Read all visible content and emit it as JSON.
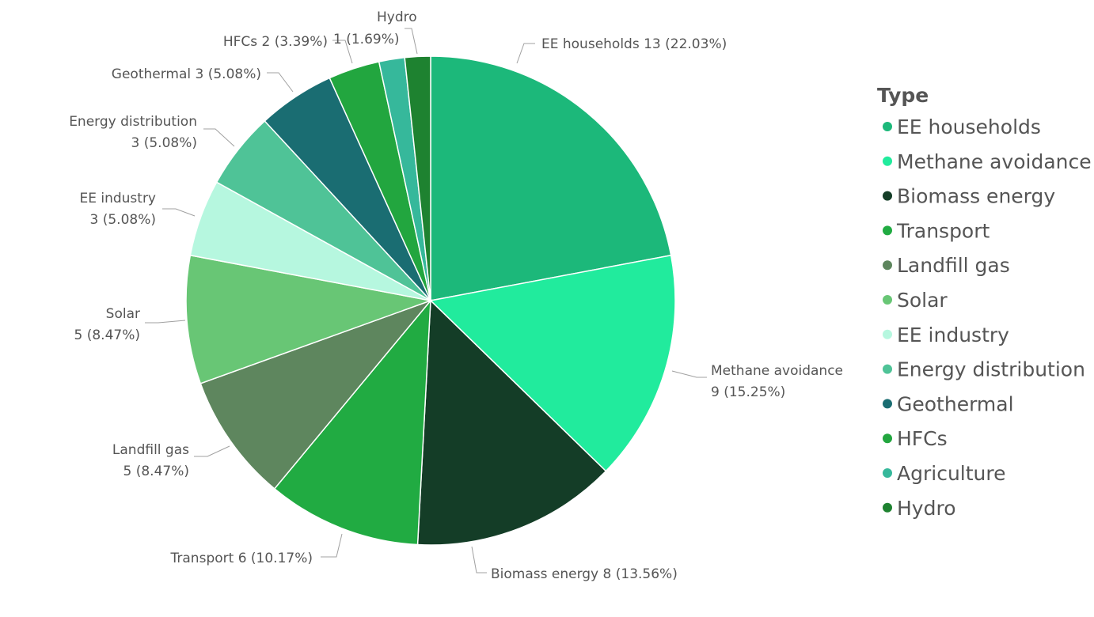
{
  "chart_data": {
    "type": "pie",
    "legend": {
      "title": "Type",
      "position": "right"
    },
    "slices": [
      {
        "label": "EE households",
        "value": 13,
        "percent": "22.03%",
        "color": "#1cb87a"
      },
      {
        "label": "Methane avoidance",
        "value": 9,
        "percent": "15.25%",
        "color": "#21eb9d"
      },
      {
        "label": "Biomass energy",
        "value": 8,
        "percent": "13.56%",
        "color": "#143d27"
      },
      {
        "label": "Transport",
        "value": 6,
        "percent": "10.17%",
        "color": "#21ab42"
      },
      {
        "label": "Landfill gas",
        "value": 5,
        "percent": "8.47%",
        "color": "#5e865e"
      },
      {
        "label": "Solar",
        "value": 5,
        "percent": "8.47%",
        "color": "#68c675"
      },
      {
        "label": "EE industry",
        "value": 3,
        "percent": "5.08%",
        "color": "#b6f7df"
      },
      {
        "label": "Energy distribution",
        "value": 3,
        "percent": "5.08%",
        "color": "#4fc397"
      },
      {
        "label": "Geothermal",
        "value": 3,
        "percent": "5.08%",
        "color": "#1a6d72"
      },
      {
        "label": "HFCs",
        "value": 2,
        "percent": "3.39%",
        "color": "#22a63f"
      },
      {
        "label": "Agriculture",
        "value": 1,
        "percent": "1.69%",
        "color": "#36b89b"
      },
      {
        "label": "Hydro",
        "value": 1,
        "percent": "1.69%",
        "color": "#1e8230"
      }
    ],
    "data_labels": [
      {
        "for": "EE households",
        "lines": [
          "EE households 13 (22.03%)"
        ]
      },
      {
        "for": "Methane avoidance",
        "lines": [
          "Methane avoidance",
          "9 (15.25%)"
        ]
      },
      {
        "for": "Biomass energy",
        "lines": [
          "Biomass energy 8 (13.56%)"
        ]
      },
      {
        "for": "Transport",
        "lines": [
          "Transport 6 (10.17%)"
        ]
      },
      {
        "for": "Landfill gas",
        "lines": [
          "Landfill gas",
          "5 (8.47%)"
        ]
      },
      {
        "for": "Solar",
        "lines": [
          "Solar",
          "5 (8.47%)"
        ]
      },
      {
        "for": "EE industry",
        "lines": [
          "EE industry",
          "3 (5.08%)"
        ]
      },
      {
        "for": "Energy distribution",
        "lines": [
          "Energy distribution",
          "3 (5.08%)"
        ]
      },
      {
        "for": "Geothermal",
        "lines": [
          "Geothermal 3 (5.08%)"
        ]
      },
      {
        "for": "HFCs",
        "lines": [
          "HFCs 2 (3.39%)"
        ]
      },
      {
        "for": "Agriculture",
        "lines": [
          "1 (1.69%)"
        ]
      },
      {
        "for": "Hydro",
        "lines": [
          "Hydro"
        ]
      }
    ]
  }
}
